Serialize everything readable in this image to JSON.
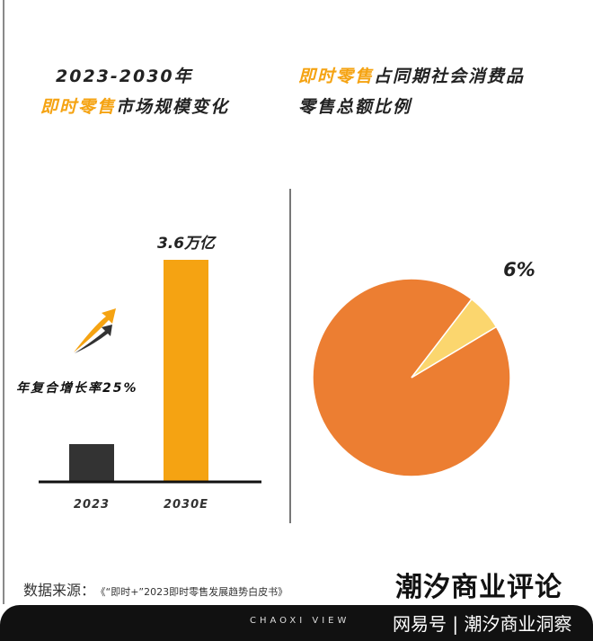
{
  "left_title": {
    "line1": "2023-2030年",
    "line2_highlight": "即时零售",
    "line2_rest": "市场规模变化"
  },
  "right_title": {
    "line1_highlight": "即时零售",
    "line1_rest": "占同期社会消费品",
    "line2": "零售总额比例"
  },
  "colors": {
    "accent": "#f5a312",
    "bar_2023": "#333333",
    "pie_main": "#ec7e32",
    "pie_slice": "#fbd66e"
  },
  "chart_data": [
    {
      "type": "bar",
      "categories": [
        "2023",
        "2030E"
      ],
      "values": [
        0.6,
        3.6
      ],
      "data_labels": [
        "",
        "3.6万亿"
      ],
      "annotation": "年复合增长率25%",
      "ylim": [
        0,
        3.6
      ]
    },
    {
      "type": "pie",
      "slices": [
        {
          "value": 94,
          "color": "#ec7e32"
        },
        {
          "value": 6,
          "color": "#fbd66e",
          "label": "6%"
        }
      ]
    }
  ],
  "footer": {
    "source_label": "数据来源：",
    "source_book": "《“即时+”2023即时零售发展趋势白皮书》",
    "brand": "潮汐商业评论",
    "band_text": "CHAOXI VIEW",
    "watermark": "网易号 | 潮汐商业洞察"
  }
}
